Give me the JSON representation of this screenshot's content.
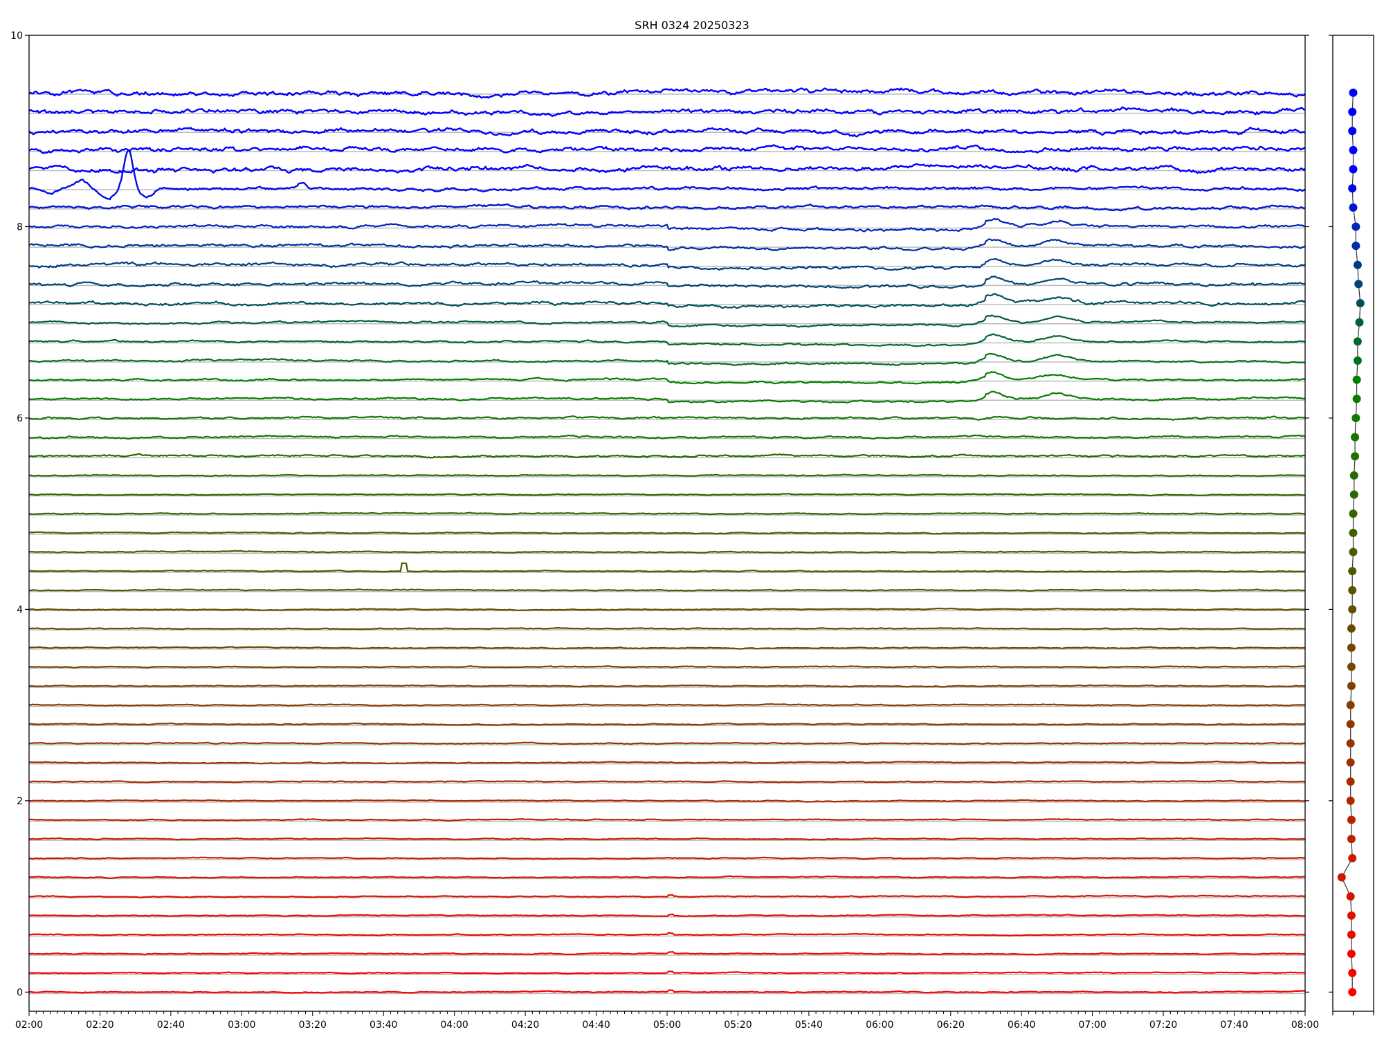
{
  "chart_data": [
    {
      "type": "line",
      "title": "SRH 0324 20250323",
      "xlabel": "",
      "ylabel": "",
      "x_range": [
        "02:00",
        "08:00"
      ],
      "x_tick_labels": [
        "02:00",
        "02:20",
        "02:40",
        "03:00",
        "03:20",
        "03:40",
        "04:00",
        "04:20",
        "04:40",
        "05:00",
        "05:20",
        "05:40",
        "06:00",
        "06:20",
        "06:40",
        "07:00",
        "07:20",
        "07:40",
        "08:00"
      ],
      "x_minor_tick_minutes": 2,
      "ylim": [
        -0.2,
        10
      ],
      "y_ticks": [
        0,
        2,
        4,
        6,
        8,
        10
      ],
      "grid": "horizontal gray line at each trace baseline",
      "trace_offsets": [
        0,
        0.2,
        0.4,
        0.6,
        0.8,
        1.0,
        1.2,
        1.4,
        1.6,
        1.8,
        2.0,
        2.2,
        2.4,
        2.6,
        2.8,
        3.0,
        3.2,
        3.4,
        3.6,
        3.8,
        4.0,
        4.2,
        4.4,
        4.6,
        4.8,
        5.0,
        5.2,
        5.4,
        5.6,
        5.8,
        6.0,
        6.2,
        6.4,
        6.6,
        6.8,
        7.0,
        7.2,
        7.4,
        7.6,
        7.8,
        8.0,
        8.2,
        8.4,
        8.6,
        8.8,
        9.0,
        9.2,
        9.4
      ],
      "color_stops": [
        {
          "y": 0,
          "color": "#ff0000"
        },
        {
          "y": 6.4,
          "color": "#008000"
        },
        {
          "y": 8.6,
          "color": "#0000ff"
        }
      ],
      "annotations_visible": [
        {
          "trace": 8.4,
          "feature": "large dip near 02:28"
        },
        {
          "trace": 4.4,
          "feature": "spike near 03:45"
        }
      ]
    },
    {
      "type": "scatter",
      "connected": true,
      "xlim": [
        -23,
        23
      ],
      "ylim": [
        -0.2,
        10
      ],
      "x_ticks": [
        -23,
        0,
        23
      ],
      "y_ticks": [
        0,
        2,
        4,
        6,
        8,
        10
      ],
      "points_y": [
        0,
        0.2,
        0.4,
        0.6,
        0.8,
        1.0,
        1.2,
        1.4,
        1.6,
        1.8,
        2.0,
        2.2,
        2.4,
        2.6,
        2.8,
        3.0,
        3.2,
        3.4,
        3.6,
        3.8,
        4.0,
        4.2,
        4.4,
        4.6,
        4.8,
        5.0,
        5.2,
        5.4,
        5.6,
        5.8,
        6.0,
        6.2,
        6.4,
        6.6,
        6.8,
        7.0,
        7.2,
        7.4,
        7.6,
        7.8,
        8.0,
        8.2,
        8.4,
        8.6,
        8.8,
        9.0,
        9.2,
        9.4
      ],
      "points_x": [
        -1,
        -1,
        -2,
        -2,
        -2,
        -3,
        -13,
        -1,
        -2,
        -2,
        -3,
        -3,
        -3,
        -3,
        -3,
        -3,
        -2,
        -2,
        -2,
        -2,
        -1,
        -1,
        -1,
        0,
        0,
        0,
        1,
        1,
        2,
        2,
        3,
        4,
        4,
        5,
        5,
        7,
        8,
        6,
        5,
        3,
        3,
        0,
        -1,
        0,
        0,
        -1,
        -1,
        0
      ]
    }
  ]
}
